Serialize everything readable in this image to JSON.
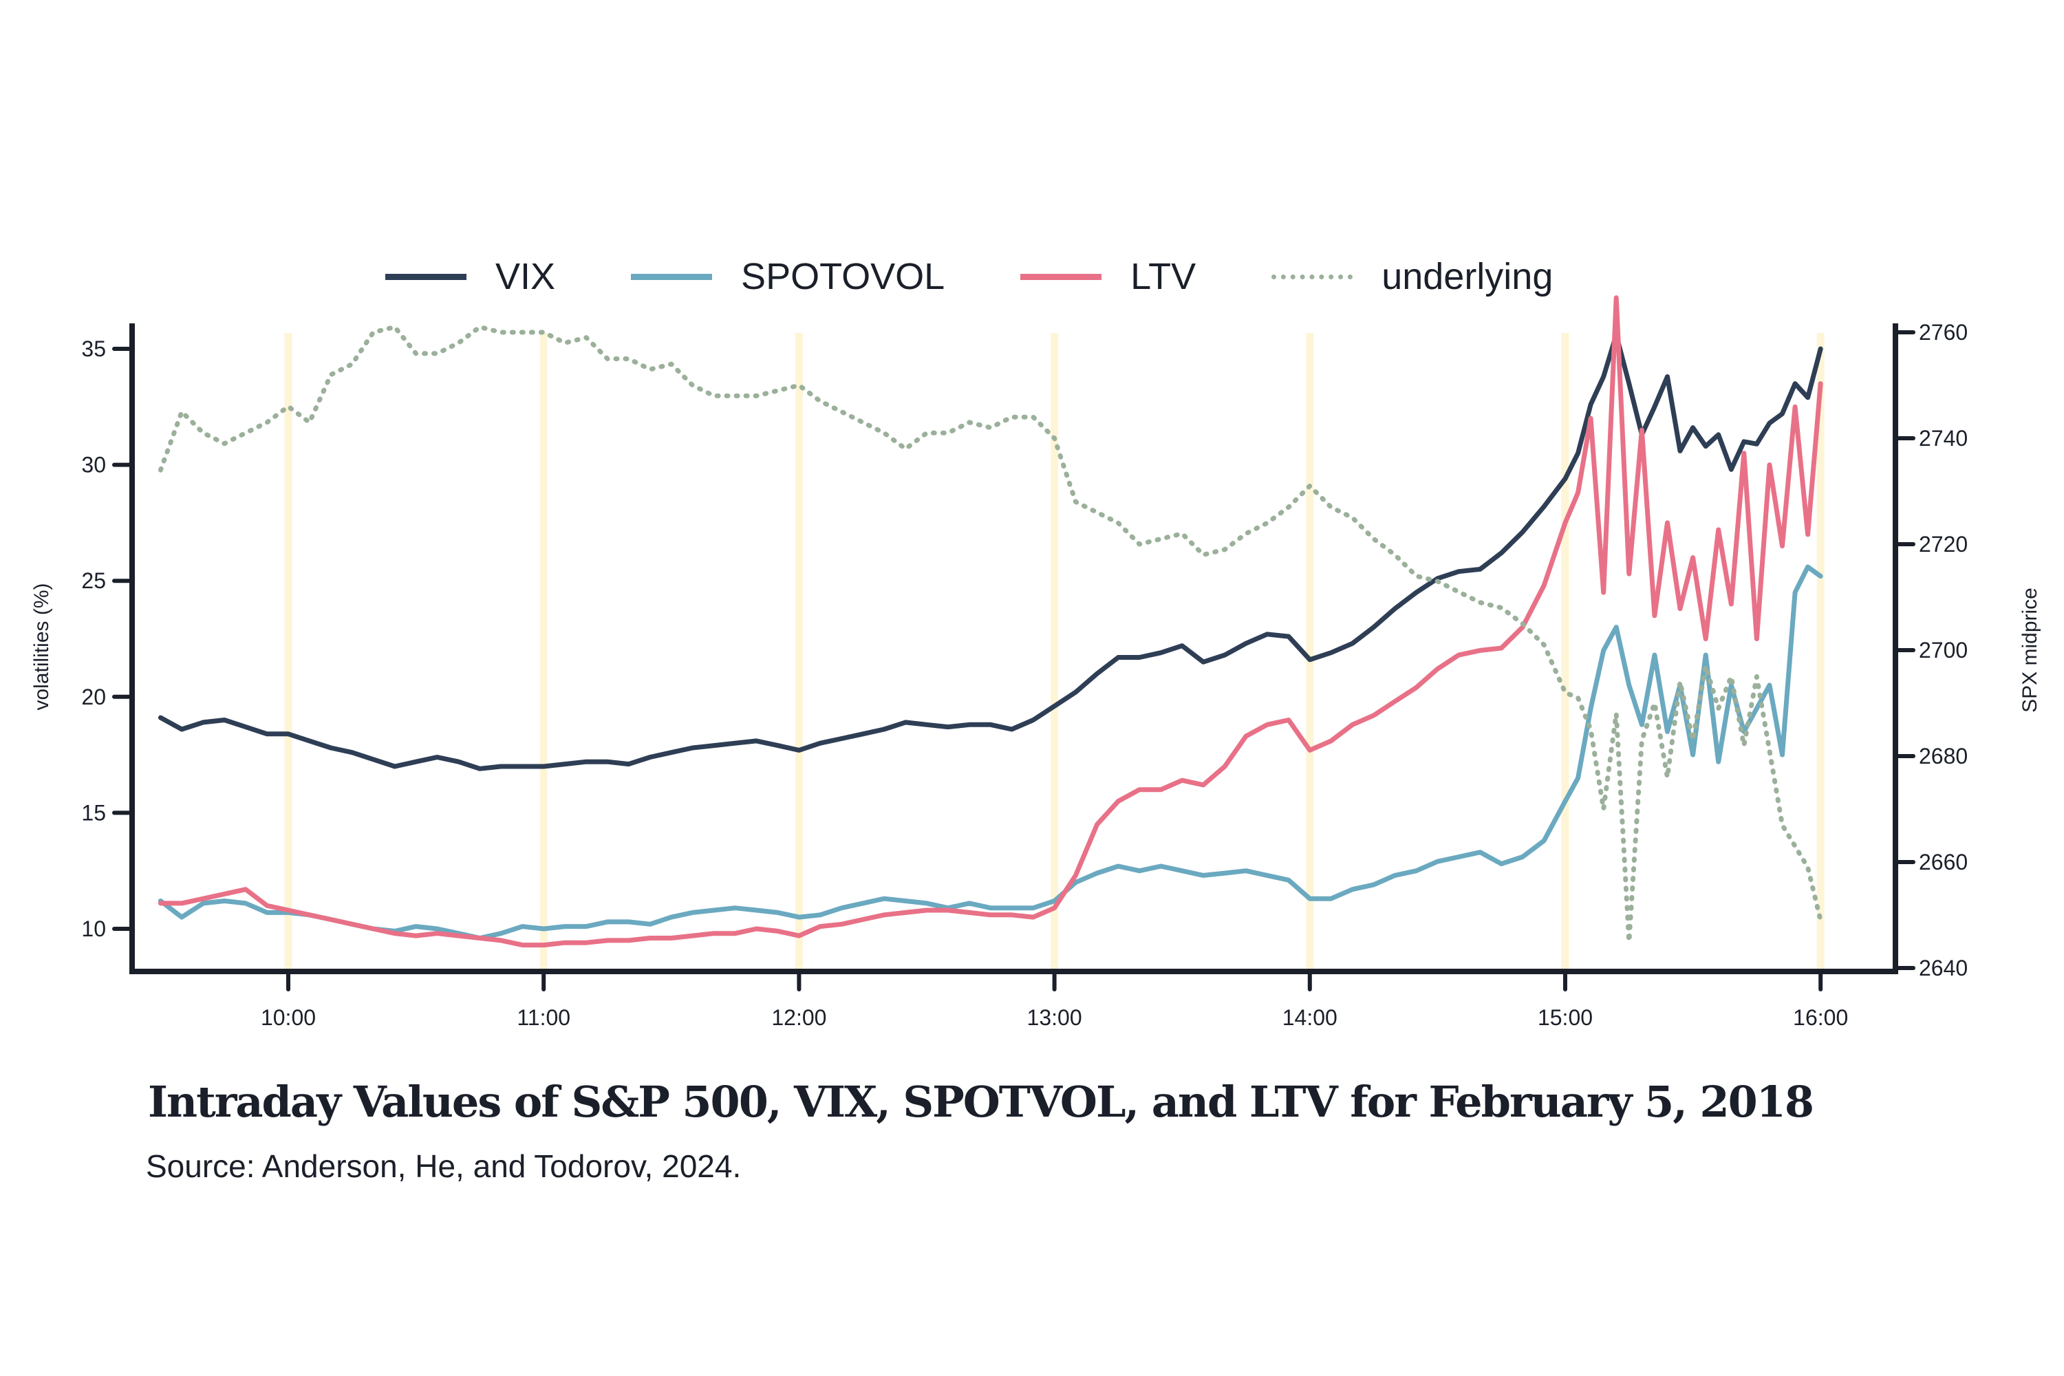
{
  "chart_data": {
    "type": "line",
    "title": "Intraday Values of S&P 500, VIX, SPOTVOL, and LTV for February 5, 2018",
    "subtitle": "Source: Anderson, He, and Todorov, 2024.",
    "xlabel": "",
    "ylabel": "volatilities (%)",
    "y2label": "SPX midprice",
    "x_ticks": [
      "10:00",
      "11:00",
      "12:00",
      "13:00",
      "14:00",
      "15:00",
      "16:00"
    ],
    "x_tick_values": [
      10,
      11,
      12,
      13,
      14,
      15,
      16
    ],
    "xlim": [
      9.4,
      16.25
    ],
    "ylim": [
      7.8,
      38
    ],
    "y_ticks": [
      10,
      15,
      20,
      25,
      30,
      35
    ],
    "y2lim": [
      2638.5,
      2767
    ],
    "y2_ticks": [
      2640,
      2660,
      2680,
      2700,
      2720,
      2740,
      2760
    ],
    "grid": "vertical hour bands",
    "legend_position": "top",
    "x": [
      9.5,
      9.583,
      9.667,
      9.75,
      9.833,
      9.917,
      10.0,
      10.083,
      10.167,
      10.25,
      10.333,
      10.417,
      10.5,
      10.583,
      10.667,
      10.75,
      10.833,
      10.917,
      11.0,
      11.083,
      11.167,
      11.25,
      11.333,
      11.417,
      11.5,
      11.583,
      11.667,
      11.75,
      11.833,
      11.917,
      12.0,
      12.083,
      12.167,
      12.25,
      12.333,
      12.417,
      12.5,
      12.583,
      12.667,
      12.75,
      12.833,
      12.917,
      13.0,
      13.083,
      13.167,
      13.25,
      13.333,
      13.417,
      13.5,
      13.583,
      13.667,
      13.75,
      13.833,
      13.917,
      14.0,
      14.083,
      14.167,
      14.25,
      14.333,
      14.417,
      14.5,
      14.583,
      14.667,
      14.75,
      14.833,
      14.917,
      15.0,
      15.05,
      15.1,
      15.15,
      15.2,
      15.25,
      15.3,
      15.35,
      15.4,
      15.45,
      15.5,
      15.55,
      15.6,
      15.65,
      15.7,
      15.75,
      15.8,
      15.85,
      15.9,
      15.95,
      16.0
    ],
    "series": [
      {
        "name": "VIX",
        "axis": "left",
        "color": "#2e3e55",
        "style": "solid",
        "values": [
          19.1,
          18.6,
          18.9,
          19.0,
          18.7,
          18.4,
          18.4,
          18.1,
          17.8,
          17.6,
          17.3,
          17.0,
          17.2,
          17.4,
          17.2,
          16.9,
          17.0,
          17.0,
          17.0,
          17.1,
          17.2,
          17.2,
          17.1,
          17.4,
          17.6,
          17.8,
          17.9,
          18.0,
          18.1,
          17.9,
          17.7,
          18.0,
          18.2,
          18.4,
          18.6,
          18.9,
          18.8,
          18.7,
          18.8,
          18.8,
          18.6,
          19.0,
          19.6,
          20.2,
          21.0,
          21.7,
          21.7,
          21.9,
          22.2,
          21.5,
          21.8,
          22.3,
          22.7,
          22.6,
          21.6,
          21.9,
          22.3,
          23.0,
          23.8,
          24.5,
          25.1,
          25.4,
          25.5,
          26.2,
          27.1,
          28.2,
          29.4,
          30.5,
          32.6,
          33.8,
          35.6,
          33.5,
          31.3,
          32.5,
          33.8,
          30.6,
          31.6,
          30.8,
          31.3,
          29.8,
          31.0,
          30.9,
          31.8,
          32.2,
          33.5,
          32.9,
          35.0
        ]
      },
      {
        "name": "SPOTOVOL",
        "axis": "left",
        "color": "#6aa9c0",
        "style": "solid",
        "values": [
          11.2,
          10.5,
          11.1,
          11.2,
          11.1,
          10.7,
          10.7,
          10.6,
          10.4,
          10.2,
          10.0,
          9.9,
          10.1,
          10.0,
          9.8,
          9.6,
          9.8,
          10.1,
          10.0,
          10.1,
          10.1,
          10.3,
          10.3,
          10.2,
          10.5,
          10.7,
          10.8,
          10.9,
          10.8,
          10.7,
          10.5,
          10.6,
          10.9,
          11.1,
          11.3,
          11.2,
          11.1,
          10.9,
          11.1,
          10.9,
          10.9,
          10.9,
          11.2,
          12.0,
          12.4,
          12.7,
          12.5,
          12.7,
          12.5,
          12.3,
          12.4,
          12.5,
          12.3,
          12.1,
          11.3,
          11.3,
          11.7,
          11.9,
          12.3,
          12.5,
          12.9,
          13.1,
          13.3,
          12.8,
          13.1,
          13.8,
          15.5,
          16.5,
          19.5,
          22.0,
          23.0,
          20.5,
          18.8,
          21.8,
          18.5,
          20.5,
          17.5,
          21.8,
          17.2,
          20.5,
          18.5,
          19.5,
          20.5,
          17.5,
          24.5,
          25.6,
          25.2
        ]
      },
      {
        "name": "LTV",
        "axis": "left",
        "color": "#e87187",
        "style": "solid",
        "values": [
          11.1,
          11.1,
          11.3,
          11.5,
          11.7,
          11.0,
          10.8,
          10.6,
          10.4,
          10.2,
          10.0,
          9.8,
          9.7,
          9.8,
          9.7,
          9.6,
          9.5,
          9.3,
          9.3,
          9.4,
          9.4,
          9.5,
          9.5,
          9.6,
          9.6,
          9.7,
          9.8,
          9.8,
          10.0,
          9.9,
          9.7,
          10.1,
          10.2,
          10.4,
          10.6,
          10.7,
          10.8,
          10.8,
          10.7,
          10.6,
          10.6,
          10.5,
          10.9,
          12.3,
          14.5,
          15.5,
          16.0,
          16.0,
          16.4,
          16.2,
          17.0,
          18.3,
          18.8,
          19.0,
          17.7,
          18.1,
          18.8,
          19.2,
          19.8,
          20.4,
          21.2,
          21.8,
          22.0,
          22.1,
          23.0,
          24.8,
          27.5,
          28.8,
          32.0,
          24.5,
          37.2,
          25.3,
          31.5,
          23.5,
          27.5,
          23.8,
          26.0,
          22.5,
          27.2,
          24.0,
          30.5,
          22.5,
          30.0,
          26.5,
          32.5,
          27.0,
          33.5
        ]
      },
      {
        "name": "underlying",
        "axis": "right",
        "color": "#9bb09a",
        "style": "dotted",
        "values": [
          2734,
          2745,
          2741,
          2739,
          2741,
          2743,
          2746,
          2743,
          2752,
          2754,
          2760,
          2761,
          2756,
          2756,
          2758,
          2761,
          2760,
          2760,
          2760,
          2758,
          2759,
          2755,
          2755,
          2753,
          2754,
          2750,
          2748,
          2748,
          2748,
          2749,
          2750,
          2747,
          2745,
          2743,
          2741,
          2738,
          2741,
          2741,
          2743,
          2742,
          2744,
          2744,
          2740,
          2728,
          2726,
          2724,
          2720,
          2721,
          2722,
          2718,
          2719,
          2722,
          2724,
          2727,
          2731,
          2727,
          2725,
          2721,
          2718,
          2714,
          2713,
          2711,
          2709,
          2708,
          2705,
          2701,
          2692,
          2691,
          2685,
          2670,
          2688,
          2645,
          2683,
          2690,
          2676,
          2694,
          2683,
          2697,
          2689,
          2695,
          2682,
          2695,
          2681,
          2667,
          2663,
          2659,
          2649
        ]
      }
    ]
  },
  "legend": {
    "items": [
      {
        "label": "VIX",
        "color": "#2e3e55"
      },
      {
        "label": "SPOTOVOL",
        "color": "#6aa9c0"
      },
      {
        "label": "LTV",
        "color": "#e87187"
      },
      {
        "label": "underlying",
        "color": "#9bb09a"
      }
    ]
  },
  "colors": {
    "axis": "#1a1f29",
    "hour_band": "#fdf5d6",
    "text": "#1a1f29"
  }
}
